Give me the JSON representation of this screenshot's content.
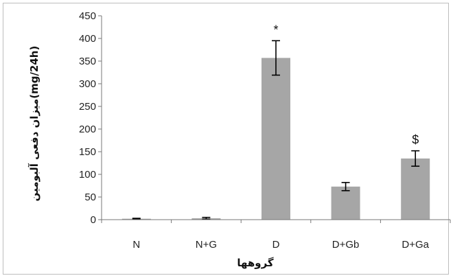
{
  "chart_data": {
    "type": "bar",
    "categories": [
      "N",
      "N+G",
      "D",
      "D+Gb",
      "D+Ga"
    ],
    "values": [
      2,
      3,
      357,
      73,
      135
    ],
    "errors": [
      1,
      2,
      38,
      9,
      17
    ],
    "annotations": [
      "",
      "",
      "*",
      "",
      "$"
    ],
    "ylim": [
      0,
      450
    ],
    "yticks": [
      0,
      50,
      100,
      150,
      200,
      250,
      300,
      350,
      400,
      450
    ],
    "xlabel": "گروهها",
    "ylabel": "میزان دفعی آلبومین(mg/24h)",
    "bar_color": "#a6a6a6",
    "grid": false
  }
}
